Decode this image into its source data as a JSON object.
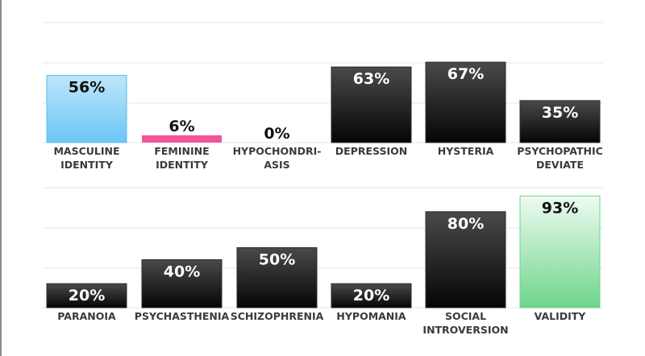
{
  "chart_data": [
    {
      "type": "bar",
      "categories": [
        [
          "MASCULINE",
          "IDENTITY"
        ],
        [
          "FEMININE",
          "IDENTITY"
        ],
        [
          "HYPOCHONDRI-",
          "ASIS"
        ],
        [
          "DEPRESSION"
        ],
        [
          "HYSTERIA"
        ],
        [
          "PSYCHOPATHIC",
          "DEVIATE"
        ]
      ],
      "values": [
        56,
        6,
        0,
        63,
        67,
        35
      ],
      "value_labels": [
        "56%",
        "6%",
        "0%",
        "63%",
        "67%",
        "35%"
      ],
      "bar_styles": [
        "blue",
        "pink",
        "dark",
        "dark",
        "dark",
        "dark"
      ],
      "ylim": [
        0,
        100
      ],
      "grid": true
    },
    {
      "type": "bar",
      "categories": [
        [
          "PARANOIA"
        ],
        [
          "PSYCHASTHENIA"
        ],
        [
          "SCHIZOPHRENIA"
        ],
        [
          "HYPOMANIA"
        ],
        [
          "SOCIAL",
          "INTROVERSION"
        ],
        [
          "VALIDITY"
        ]
      ],
      "values": [
        20,
        40,
        50,
        20,
        80,
        93
      ],
      "value_labels": [
        "20%",
        "40%",
        "50%",
        "20%",
        "80%",
        "93%"
      ],
      "bar_styles": [
        "dark",
        "dark",
        "dark",
        "dark",
        "dark",
        "green"
      ],
      "ylim": [
        0,
        100
      ],
      "grid": true
    }
  ],
  "colors": {
    "dark_top": "#4a4a4a",
    "dark_bottom": "#050505",
    "blue_top": "#bde6fb",
    "blue_bottom": "#6cc6f6",
    "pink": "#f0549b",
    "green_top": "#eefbf1",
    "green_bottom": "#6fd48c",
    "value_on_dark": "#ffffff",
    "value_on_light": "#111111",
    "grid": "#e6e6e6"
  }
}
